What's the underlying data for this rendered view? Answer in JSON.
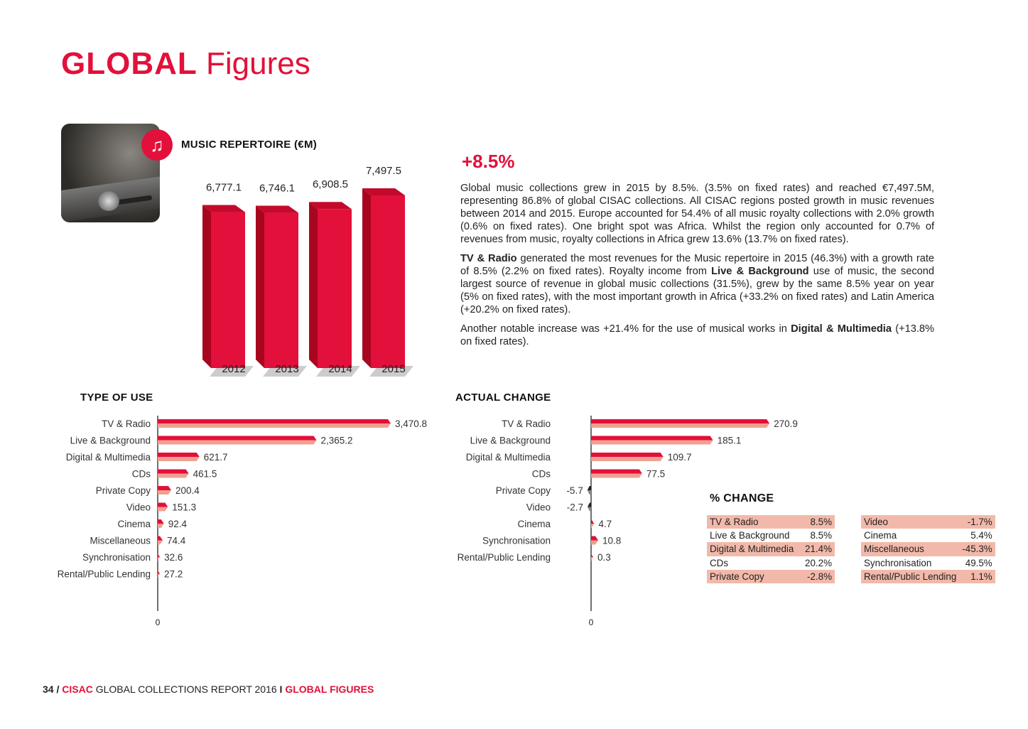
{
  "page_title": {
    "bold": "GLOBAL",
    "light": "Figures"
  },
  "icons": {
    "music": "music-note-icon",
    "photo": "microphone-photo"
  },
  "colors": {
    "accent": "#e2103a",
    "salmon": "#f2b9aa",
    "bar_light": "#f0a090",
    "negative": "#333333"
  },
  "headline": "+8.5%",
  "paragraphs": [
    [
      {
        "t": "Global music collections grew in 2015 by 8.5%. (3.5% on fixed rates) and reached €7,497.5M, representing 86.8% of global CISAC collections. All CISAC regions posted growth in music revenues between 2014 and 2015. Europe accounted for 54.4% of all music royalty collections with 2.0% growth (0.6% on fixed rates). One bright spot was Africa. Whilst the region only accounted for 0.7% of revenues from music, royalty collections in Africa grew 13.6% (13.7% on fixed rates)."
      }
    ],
    [
      {
        "t": "TV & Radio",
        "b": true
      },
      {
        "t": " generated the most revenues for the Music repertoire in 2015 (46.3%) with a growth rate of 8.5% (2.2% on fixed rates). Royalty income from "
      },
      {
        "t": "Live & Background",
        "b": true
      },
      {
        "t": " use of music, the second largest source of revenue in global music collections (31.5%), grew by the same 8.5% year on year (5% on fixed rates), with the most important growth in Africa (+33.2% on fixed rates) and Latin America (+20.2% on fixed rates)."
      }
    ],
    [
      {
        "t": "Another notable increase was +21.4% for the use of musical works in "
      },
      {
        "t": "Digital & Multimedia",
        "b": true
      },
      {
        "t": " (+13.8% on fixed rates)."
      }
    ]
  ],
  "percent_change": {
    "title": "% CHANGE",
    "left": [
      {
        "label": "TV & Radio",
        "value": "8.5%"
      },
      {
        "label": "Live & Background",
        "value": "8.5%"
      },
      {
        "label": "Digital & Multimedia",
        "value": "21.4%"
      },
      {
        "label": "CDs",
        "value": "20.2%"
      },
      {
        "label": "Private Copy",
        "value": "-2.8%"
      }
    ],
    "right": [
      {
        "label": "Video",
        "value": "-1.7%"
      },
      {
        "label": "Cinema",
        "value": "5.4%"
      },
      {
        "label": "Miscellaneous",
        "value": "-45.3%"
      },
      {
        "label": "Synchronisation",
        "value": "49.5%"
      },
      {
        "label": "Rental/Public Lending",
        "value": "1.1%"
      }
    ]
  },
  "footer": {
    "page": "34 /",
    "brand": "CISAC",
    "report": "GLOBAL COLLECTIONS REPORT 2016",
    "sep": "I",
    "section": "GLOBAL FIGURES"
  },
  "chart_data": [
    {
      "type": "bar",
      "title": "MUSIC REPERTOIRE (€M)",
      "categories": [
        "2012",
        "2013",
        "2014",
        "2015"
      ],
      "values": [
        6777.1,
        6746.1,
        6908.5,
        7497.5
      ],
      "labels": [
        "6,777.1",
        "6,746.1",
        "6,908.5",
        "7,497.5"
      ],
      "xlabel": "",
      "ylabel": "",
      "ylim": [
        0,
        7497.5
      ]
    },
    {
      "type": "bar",
      "orientation": "horizontal",
      "title": "TYPE OF USE",
      "categories": [
        "TV & Radio",
        "Live & Background",
        "Digital & Multimedia",
        "CDs",
        "Private Copy",
        "Video",
        "Cinema",
        "Miscellaneous",
        "Synchronisation",
        "Rental/Public Lending"
      ],
      "values": [
        3470.8,
        2365.2,
        621.7,
        461.5,
        200.4,
        151.3,
        92.4,
        74.4,
        32.6,
        27.2
      ],
      "labels": [
        "3,470.8",
        "2,365.2",
        "621.7",
        "461.5",
        "200.4",
        "151.3",
        "92.4",
        "74.4",
        "32.6",
        "27.2"
      ],
      "axis_zero_label": "0"
    },
    {
      "type": "bar",
      "orientation": "horizontal",
      "title": "ACTUAL CHANGE",
      "categories": [
        "TV & Radio",
        "Live & Background",
        "Digital & Multimedia",
        "CDs",
        "Private Copy",
        "Video",
        "Cinema",
        "Synchronisation",
        "Rental/Public Lending"
      ],
      "values": [
        270.9,
        185.1,
        109.7,
        77.5,
        -5.7,
        -2.7,
        4.7,
        10.8,
        0.3
      ],
      "labels": [
        "270.9",
        "185.1",
        "109.7",
        "77.5",
        "-5.7",
        "-2.7",
        "4.7",
        "10.8",
        "0.3"
      ],
      "axis_zero_label": "0"
    }
  ]
}
